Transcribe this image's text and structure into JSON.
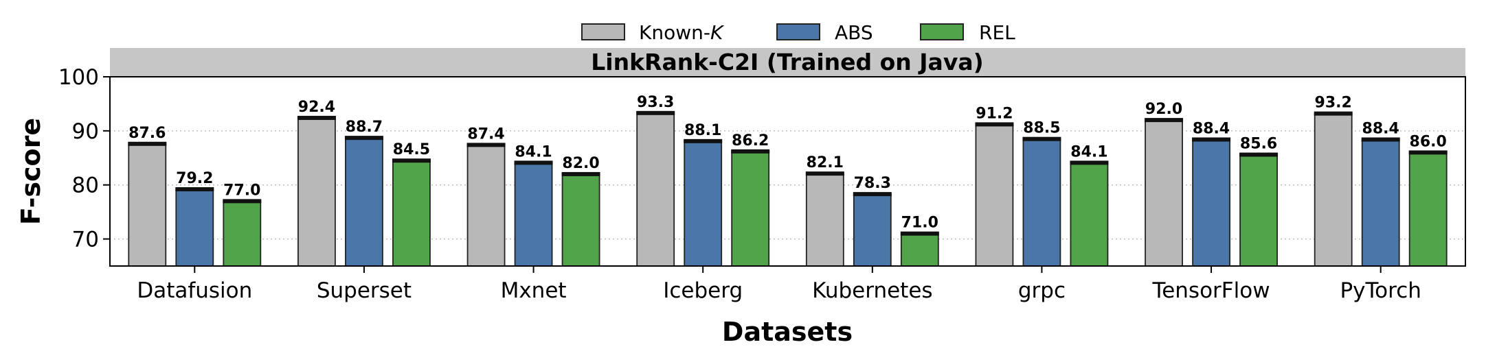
{
  "chart_data": {
    "type": "bar",
    "title": "LinkRank-C2I (Trained on Java)",
    "xlabel": "Datasets",
    "ylabel": "F-score",
    "ylim": [
      65,
      100
    ],
    "yticks": [
      70,
      80,
      90,
      100
    ],
    "grid": "horizontal dotted",
    "legend_position": "top-center",
    "categories": [
      "Datafusion",
      "Superset",
      "Mxnet",
      "Iceberg",
      "Kubernetes",
      "grpc",
      "TensorFlow",
      "PyTorch"
    ],
    "series": [
      {
        "name": "Known-K",
        "name_prefix": "Known-",
        "name_italic": "K",
        "color": "#b8b8b8",
        "values": [
          87.6,
          92.4,
          87.4,
          93.3,
          82.1,
          91.2,
          92.0,
          93.2
        ]
      },
      {
        "name": "ABS",
        "color": "#4a76a8",
        "values": [
          79.2,
          88.7,
          84.1,
          88.1,
          78.3,
          88.5,
          88.4,
          88.4
        ]
      },
      {
        "name": "REL",
        "color": "#52a44a",
        "values": [
          77.0,
          84.5,
          82.0,
          86.2,
          71.0,
          84.1,
          85.6,
          86.0
        ]
      }
    ]
  }
}
